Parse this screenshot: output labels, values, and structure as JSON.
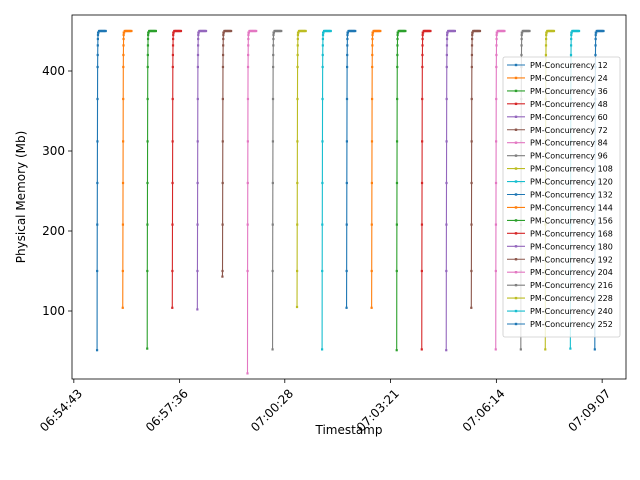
{
  "chart_data": {
    "type": "line",
    "title": "",
    "xlabel": "Timestamp",
    "ylabel": "Physical Memory (Mb)",
    "x_ticks": [
      "06:54:43",
      "06:57:36",
      "07:00:28",
      "07:03:21",
      "07:06:14",
      "07:09:07"
    ],
    "x_tick_seconds": [
      0,
      173,
      345,
      518,
      691,
      864
    ],
    "x_range_seconds": [
      -3,
      903
    ],
    "y_ticks": [
      100,
      200,
      300,
      400
    ],
    "ylim": [
      15,
      470
    ],
    "grid": false,
    "legend_position": "right",
    "series": [
      {
        "name": "PM-Concurrency 12",
        "color": "#1f77b4",
        "start": 38,
        "min": 51,
        "max": 450
      },
      {
        "name": "PM-Concurrency 24",
        "color": "#ff7f0e",
        "start": 80,
        "min": 104,
        "max": 450
      },
      {
        "name": "PM-Concurrency 36",
        "color": "#2ca02c",
        "start": 120,
        "min": 53,
        "max": 450
      },
      {
        "name": "PM-Concurrency 48",
        "color": "#d62728",
        "start": 161,
        "min": 104,
        "max": 450
      },
      {
        "name": "PM-Concurrency 60",
        "color": "#9467bd",
        "start": 202,
        "min": 102,
        "max": 450
      },
      {
        "name": "PM-Concurrency 72",
        "color": "#8c564b",
        "start": 243,
        "min": 143,
        "max": 450
      },
      {
        "name": "PM-Concurrency 84",
        "color": "#e377c2",
        "start": 284,
        "min": 22,
        "max": 450
      },
      {
        "name": "PM-Concurrency 96",
        "color": "#7f7f7f",
        "start": 325,
        "min": 52,
        "max": 450
      },
      {
        "name": "PM-Concurrency 108",
        "color": "#bcbd22",
        "start": 365,
        "min": 105,
        "max": 450
      },
      {
        "name": "PM-Concurrency 120",
        "color": "#17becf",
        "start": 406,
        "min": 52,
        "max": 450
      },
      {
        "name": "PM-Concurrency 132",
        "color": "#1f77b4",
        "start": 446,
        "min": 104,
        "max": 450
      },
      {
        "name": "PM-Concurrency 144",
        "color": "#ff7f0e",
        "start": 487,
        "min": 104,
        "max": 450
      },
      {
        "name": "PM-Concurrency 156",
        "color": "#2ca02c",
        "start": 528,
        "min": 51,
        "max": 450
      },
      {
        "name": "PM-Concurrency 168",
        "color": "#d62728",
        "start": 569,
        "min": 52,
        "max": 450
      },
      {
        "name": "PM-Concurrency 180",
        "color": "#9467bd",
        "start": 609,
        "min": 51,
        "max": 450
      },
      {
        "name": "PM-Concurrency 192",
        "color": "#8c564b",
        "start": 650,
        "min": 104,
        "max": 450
      },
      {
        "name": "PM-Concurrency 204",
        "color": "#e377c2",
        "start": 690,
        "min": 52,
        "max": 450
      },
      {
        "name": "PM-Concurrency 216",
        "color": "#7f7f7f",
        "start": 731,
        "min": 52,
        "max": 450
      },
      {
        "name": "PM-Concurrency 228",
        "color": "#bcbd22",
        "start": 771,
        "min": 52,
        "max": 450
      },
      {
        "name": "PM-Concurrency 240",
        "color": "#17becf",
        "start": 812,
        "min": 53,
        "max": 450
      },
      {
        "name": "PM-Concurrency 252",
        "color": "#1f77b4",
        "start": 852,
        "min": 52,
        "max": 450
      }
    ]
  }
}
